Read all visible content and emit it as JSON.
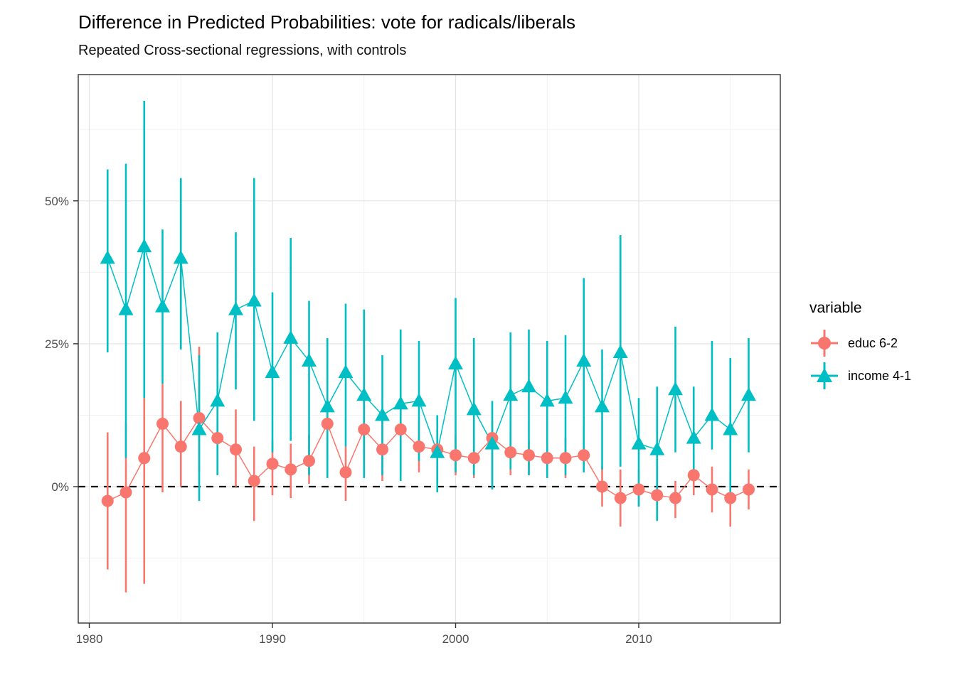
{
  "chart_data": {
    "type": "pointrange-line",
    "title": "Difference in Predicted Probabilities: vote for radicals/liberals",
    "subtitle": "Repeated Cross-sectional regressions, with controls",
    "xlabel": "",
    "ylabel": "",
    "x": [
      1981,
      1982,
      1983,
      1984,
      1985,
      1986,
      1987,
      1988,
      1989,
      1990,
      1991,
      1992,
      1993,
      1994,
      1995,
      1996,
      1997,
      1998,
      1999,
      2000,
      2001,
      2002,
      2003,
      2004,
      2005,
      2006,
      2007,
      2008,
      2009,
      2010,
      2011,
      2012,
      2013,
      2014,
      2015,
      2016
    ],
    "x_ticks": [
      1980,
      1990,
      2000,
      2010
    ],
    "x_minor_ticks": [
      1985,
      1995,
      2005,
      2015
    ],
    "y_ticks": [
      0,
      25,
      50
    ],
    "y_tick_labels": [
      "0%",
      "25%",
      "50%"
    ],
    "y_minor_ticks": [
      -12.5,
      12.5,
      37.5,
      62.5
    ],
    "xlim": [
      1979.4,
      2017.7
    ],
    "ylim": [
      -24,
      72.1
    ],
    "grid": true,
    "zero_line": {
      "y": 0,
      "style": "dashed",
      "color": "#000000"
    },
    "legend_title": "variable",
    "legend_position": "right",
    "series": [
      {
        "name": "educ 6-2",
        "marker": "circle",
        "color": "#F8766D",
        "values": [
          -2.5,
          -1,
          5,
          11,
          7,
          12,
          8.5,
          6.5,
          1,
          4,
          3,
          4.5,
          11,
          2.5,
          10,
          6.5,
          10,
          7,
          6.5,
          5.5,
          5,
          8.5,
          6,
          5.5,
          5,
          5,
          5.5,
          0,
          -2,
          -0.5,
          -1.5,
          -2,
          2,
          -0.5,
          -2,
          -0.5
        ],
        "ci_low": [
          -14.5,
          -18.5,
          -17,
          -1,
          0,
          2.5,
          2,
          0,
          -6,
          -1.5,
          -2,
          0.5,
          4.5,
          -2.5,
          4,
          1,
          2,
          2.5,
          0.5,
          2,
          1.5,
          0,
          2,
          2,
          1.5,
          1.5,
          2.5,
          -3.5,
          -7,
          -3.5,
          -6,
          -5.5,
          -1.5,
          -4.5,
          -7,
          -4
        ],
        "ci_high": [
          9.5,
          11,
          15.5,
          18,
          15,
          24.5,
          14,
          13.5,
          7,
          8,
          7.5,
          9,
          16,
          7,
          16,
          12,
          16,
          11.5,
          10,
          9,
          8.5,
          11.5,
          9.5,
          8,
          8,
          8.5,
          10.5,
          3.5,
          3,
          3,
          4.5,
          1,
          5.5,
          3.5,
          2.5,
          3
        ]
      },
      {
        "name": "income 4-1",
        "marker": "triangle",
        "color": "#00BFC4",
        "values": [
          40,
          31,
          42,
          31.5,
          40,
          10,
          15,
          31,
          32.5,
          20,
          26,
          22,
          14,
          20,
          16,
          12.5,
          14.5,
          15,
          6,
          21.5,
          13.5,
          7.5,
          16,
          17.5,
          15,
          15.5,
          22,
          14,
          23.5,
          7.5,
          6.5,
          17,
          8.5,
          12.5,
          10,
          16
        ],
        "ci_low": [
          23.5,
          5,
          15.5,
          18,
          24,
          -2.5,
          2,
          17,
          11.5,
          6,
          8,
          2,
          1.5,
          7,
          1.5,
          2,
          1,
          4.5,
          -1,
          2.5,
          2,
          -0.5,
          3,
          2,
          1.5,
          2,
          2.5,
          3,
          3.5,
          -3.5,
          -6,
          6,
          3,
          6.5,
          -3,
          6
        ],
        "ci_high": [
          55.5,
          56.5,
          67.5,
          45,
          54,
          23,
          27,
          44.5,
          54,
          34,
          43.5,
          32.5,
          26,
          32,
          31,
          23,
          27.5,
          25.5,
          12.5,
          33,
          26,
          15,
          27,
          27.5,
          25.5,
          26.5,
          36.5,
          24,
          44,
          15.5,
          17.5,
          28,
          17.5,
          25.5,
          22.5,
          26
        ]
      }
    ]
  },
  "style_colors": {
    "grid_major": "#e4e4e4",
    "grid_minor": "#efefef",
    "panel_border": "#333333",
    "tick_mark": "#333333",
    "axis_text": "#4d4d4d",
    "title_text": "#000000",
    "background": "#ffffff"
  }
}
